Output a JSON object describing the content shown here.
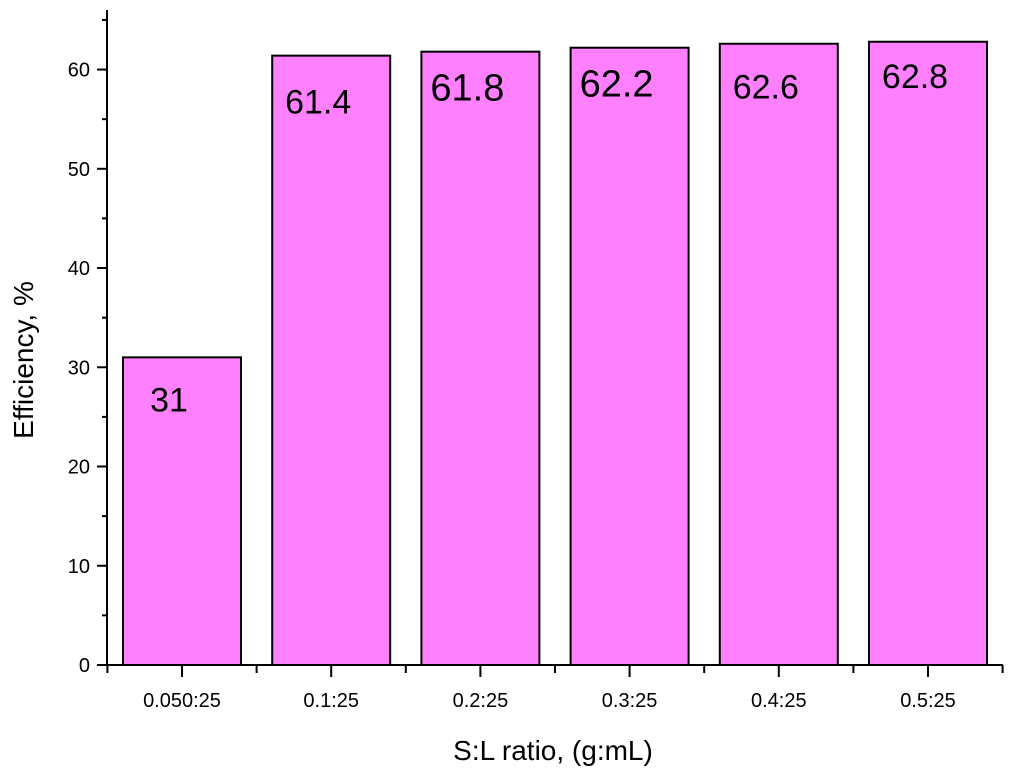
{
  "colors": {
    "bar_fill": "#ff80ff",
    "bar_stroke": "#000000",
    "axis": "#000000",
    "background": "#ffffff"
  },
  "chart_data": {
    "type": "bar",
    "categories": [
      "0.050:25",
      "0.1:25",
      "0.2:25",
      "0.3:25",
      "0.4:25",
      "0.5:25"
    ],
    "values": [
      31,
      61.4,
      61.8,
      62.2,
      62.6,
      62.8
    ],
    "data_labels": [
      "31",
      "61.4",
      "61.8",
      "62.2",
      "62.6",
      "62.8"
    ],
    "title": "",
    "xlabel": "S:L ratio, (g:mL)",
    "ylabel": "Efficiency, %",
    "ylim": [
      0,
      66
    ],
    "yticks": [
      0,
      10,
      20,
      30,
      40,
      50,
      60
    ],
    "ytick_labels": [
      "0",
      "10",
      "20",
      "30",
      "40",
      "50",
      "60"
    ],
    "grid": false,
    "legend": "none"
  }
}
